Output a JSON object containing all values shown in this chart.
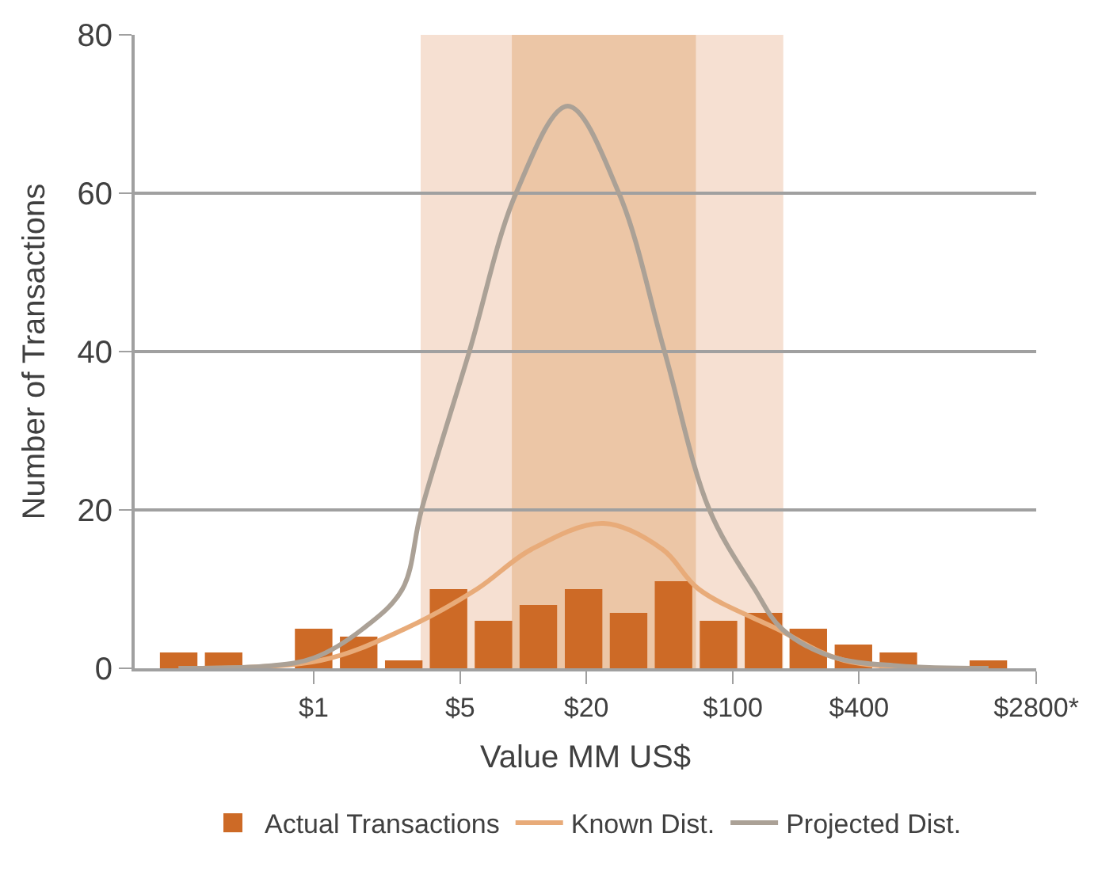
{
  "chart_data": {
    "type": "bar",
    "xlabel": "Value MM US$",
    "ylabel": "Number of Transactions",
    "log": "x",
    "xlim": [
      0.14,
      2800
    ],
    "xticks": [
      {
        "value": 1,
        "label": "$1"
      },
      {
        "value": 5,
        "label": "$5"
      },
      {
        "value": 20,
        "label": "$20"
      },
      {
        "value": 100,
        "label": "$100"
      },
      {
        "value": 400,
        "label": "$400"
      },
      {
        "value": 2800,
        "label": "$2800*"
      }
    ],
    "ylim": [
      0,
      80
    ],
    "yticks": [
      0,
      20,
      40,
      60,
      80
    ],
    "grid": "y",
    "legend": "bottom",
    "bands": [
      {
        "axis": "x",
        "from": 3.24,
        "to": 174,
        "color": "#f6e0d2"
      },
      {
        "axis": "x",
        "from": 8.82,
        "to": 66.6,
        "color": "#ecc6a6"
      }
    ],
    "series": [
      {
        "name": "Actual Transactions",
        "color": "#cd6a26",
        "x": [
          0.227,
          0.372,
          1,
          1.64,
          2.69,
          4.4,
          7.21,
          11.8,
          19.4,
          31.8,
          52.1,
          85.4,
          140,
          229,
          376,
          616,
          1655
        ],
        "values": [
          2,
          2,
          5,
          4,
          1,
          10,
          6,
          8,
          10,
          7,
          11,
          6,
          7,
          5,
          3,
          2,
          1
        ]
      },
      {
        "name": "Known Dist.",
        "type": "line",
        "color": "#e8ab79",
        "x": [
          0.227,
          1.08,
          2.73,
          6.01,
          10.9,
          24.1,
          46.3,
          68.7,
          162,
          340,
          1655
        ],
        "values": [
          0,
          1,
          5,
          10,
          15,
          18.3,
          15,
          10,
          5,
          1,
          0
        ]
      },
      {
        "name": "Projected Dist.",
        "type": "line",
        "color": "#aba196",
        "x": [
          0.227,
          0.61,
          1,
          1.72,
          2.65,
          3.27,
          5.53,
          9.24,
          16.3,
          28.6,
          47.2,
          77.3,
          127,
          171,
          294,
          616,
          1655
        ],
        "values": [
          0,
          0.3,
          1.3,
          5,
          10,
          20,
          40,
          60,
          71,
          60,
          40,
          20,
          10,
          5,
          1.5,
          0.3,
          0
        ]
      }
    ]
  }
}
